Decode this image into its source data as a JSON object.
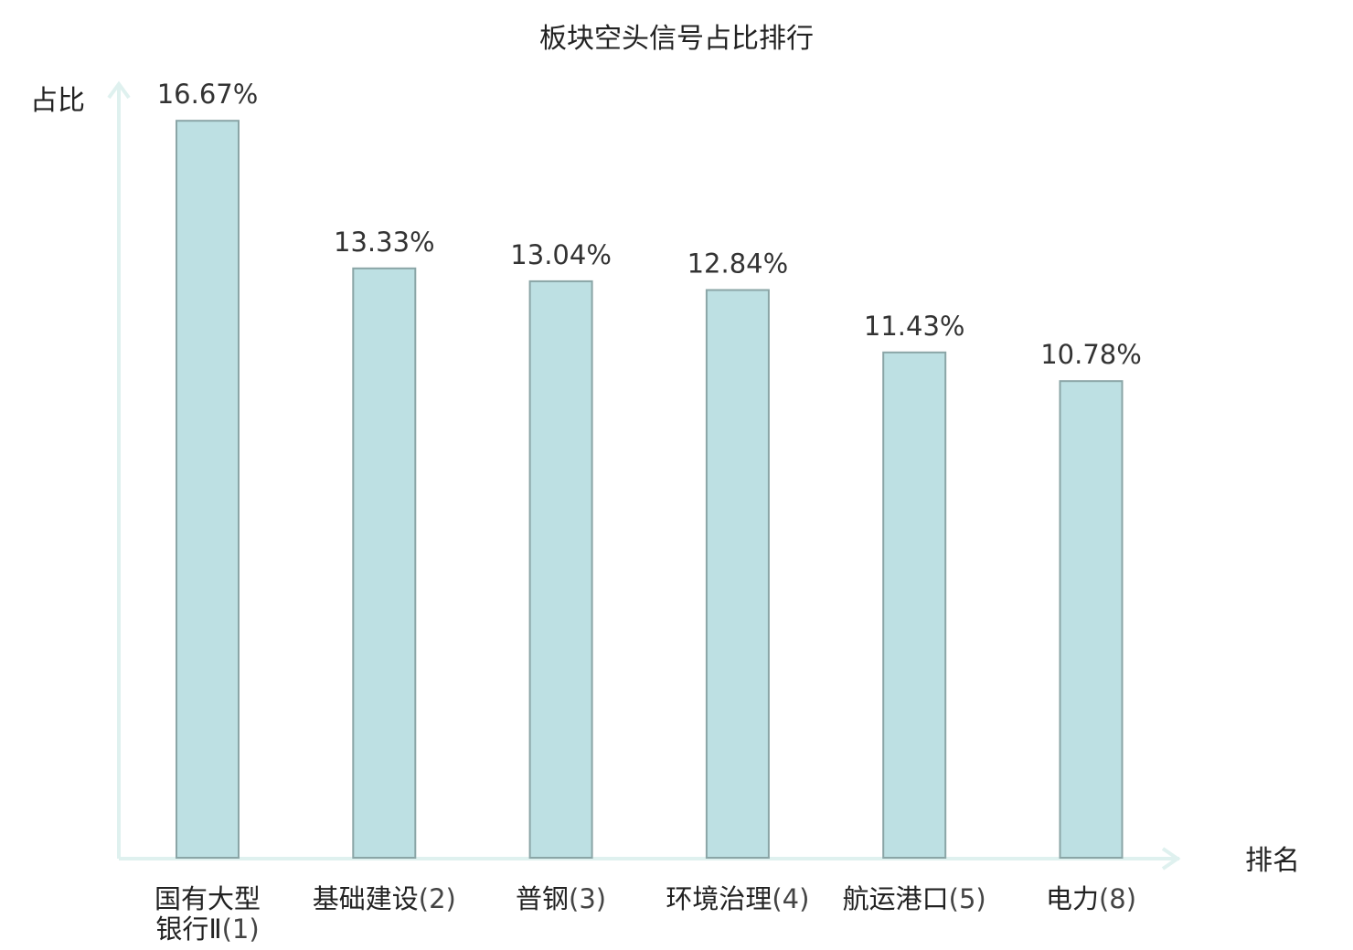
{
  "chart_data": {
    "type": "bar",
    "title": "板块空头信号占比排行",
    "xlabel": "排名",
    "ylabel": "占比",
    "ylim": [
      0,
      17.5
    ],
    "grid": false,
    "legend": "none",
    "categories": [
      {
        "name_lines": [
          "国有大型",
          "银行Ⅱ"
        ],
        "rank": "(1)",
        "highlight": false
      },
      {
        "name_lines": [
          "基础建设"
        ],
        "rank": "(2)",
        "highlight": false
      },
      {
        "name_lines": [
          "普钢"
        ],
        "rank": "(3)",
        "highlight": false
      },
      {
        "name_lines": [
          "环境治理"
        ],
        "rank": "(4)",
        "highlight": false
      },
      {
        "name_lines": [
          "航运港口"
        ],
        "rank": "(5)",
        "highlight": false
      },
      {
        "name_lines": [
          "电力"
        ],
        "rank": "(8)",
        "highlight": true
      }
    ],
    "values": [
      16.67,
      13.33,
      13.04,
      12.84,
      11.43,
      10.78
    ],
    "value_labels": [
      "16.67%",
      "13.33%",
      "13.04%",
      "12.84%",
      "11.43%",
      "10.78%"
    ]
  },
  "colors": {
    "bar_fill": "#bde0e3",
    "bar_stroke": "#8aa5a6",
    "axis": "#dff1ef",
    "highlight_text": "#e02020",
    "text": "#222222"
  }
}
